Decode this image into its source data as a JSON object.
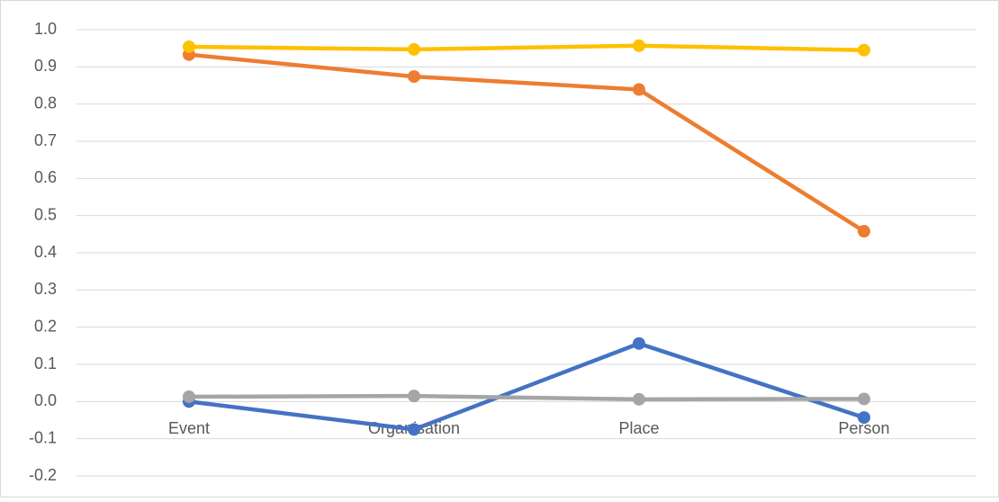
{
  "chart_data": {
    "type": "line",
    "categories": [
      "Event",
      "Organisation",
      "Place",
      "Person"
    ],
    "series": [
      {
        "color": "#4472c4",
        "values": [
          0.0,
          -0.075,
          0.156,
          -0.043
        ]
      },
      {
        "color": "#ed7d31",
        "values": [
          0.933,
          0.874,
          0.839,
          0.458
        ]
      },
      {
        "color": "#a5a5a5",
        "values": [
          0.013,
          0.015,
          0.006,
          0.007
        ]
      },
      {
        "color": "#ffc000",
        "values": [
          0.954,
          0.947,
          0.957,
          0.945
        ]
      }
    ],
    "ylim": [
      -0.2,
      1.0
    ],
    "yticks": [
      -0.2,
      -0.1,
      {
        "value": 0,
        "label": "0.0"
      },
      0.1,
      0.2,
      0.3,
      0.4,
      0.5,
      0.6,
      0.7,
      0.8,
      0.9,
      {
        "value": 1,
        "label": "1.0"
      }
    ],
    "grid": true
  }
}
